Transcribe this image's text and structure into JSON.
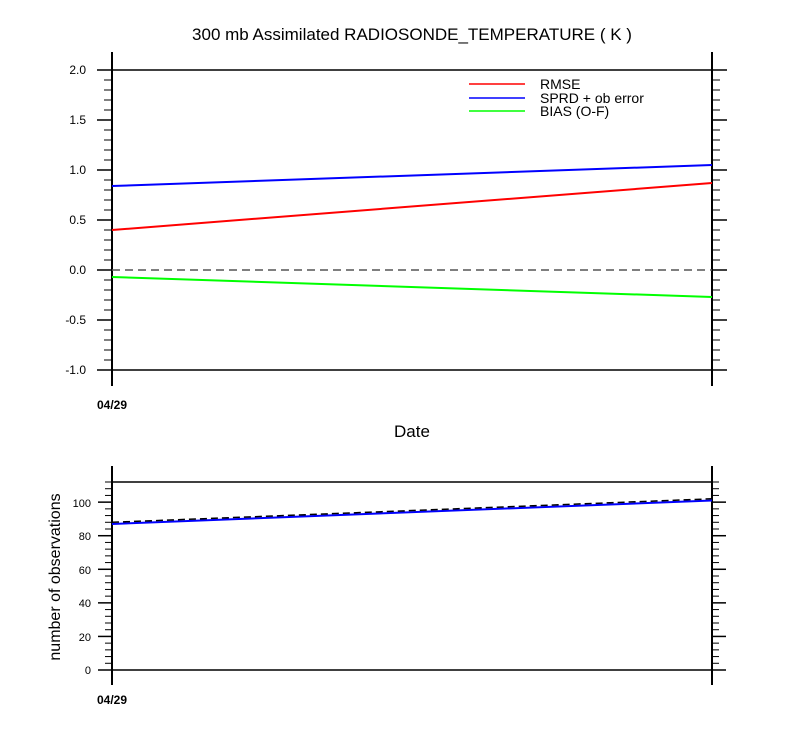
{
  "chart_data": [
    {
      "type": "line",
      "title": "300 mb Assimilated RADIOSONDE_TEMPERATURE ( K )",
      "xlabel": "Date",
      "ylabel": "",
      "x_tick_labels": [
        "04/29"
      ],
      "ylim": [
        -1.0,
        2.0
      ],
      "y_ticks": [
        "2.0",
        "1.5",
        "1.0",
        "0.5",
        "0.0",
        "-0.5",
        "-1.0"
      ],
      "legend_placement": "top-right",
      "grid": false,
      "reference_line": {
        "y": 0.0,
        "style": "dashed",
        "color": "#555555"
      },
      "series": [
        {
          "name": "RMSE",
          "color": "#ff0000",
          "values": [
            0.4,
            0.87
          ]
        },
        {
          "name": "SPRD + ob error",
          "color": "#0000ff",
          "values": [
            0.84,
            1.05
          ]
        },
        {
          "name": "BIAS (O-F)",
          "color": "#00ff00",
          "values": [
            -0.07,
            -0.27
          ]
        }
      ]
    },
    {
      "type": "line",
      "title": "",
      "xlabel": "",
      "ylabel": "number of observations",
      "x_tick_labels": [
        "04/29"
      ],
      "ylim": [
        0,
        112
      ],
      "y_ticks": [
        "100",
        "80",
        "60",
        "40",
        "20",
        "0"
      ],
      "grid": false,
      "series": [
        {
          "color": "#0000ff",
          "style": "solid",
          "values": [
            87,
            101
          ]
        },
        {
          "color": "#000000",
          "style": "dashed",
          "values": [
            88,
            102
          ]
        }
      ]
    }
  ]
}
